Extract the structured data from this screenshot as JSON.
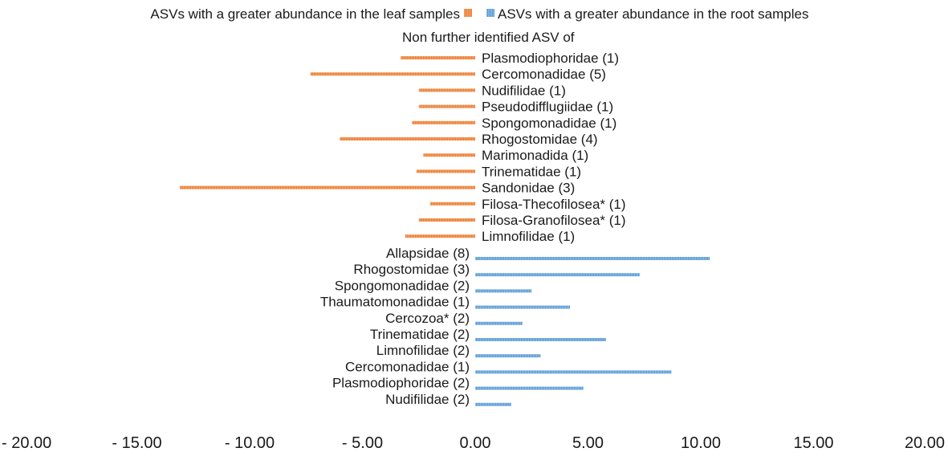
{
  "chart_data": {
    "type": "bar",
    "orientation": "horizontal",
    "subtitle": "Non further identified ASV of",
    "legend": [
      {
        "name": "ASVs with a greater abundance in the leaf samples",
        "color": "#ed7d31"
      },
      {
        "name": "ASVs with a greater abundance in the root samples",
        "color": "#5b9bd5"
      }
    ],
    "xlim": [
      -20,
      20
    ],
    "xticks": [
      "- 20.00",
      "- 15.00",
      "- 10.00",
      "- 5.00",
      "0.00",
      "5.00",
      "10.00",
      "15.00",
      "20.00"
    ],
    "series": [
      {
        "name": "ASVs with a greater abundance in the leaf samples",
        "color": "#ed7d31",
        "categories": [
          "Plasmodiophoridae (1)",
          "Cercomonadidae (5)",
          "Nudifilidae (1)",
          "Pseudodifflugiidae (1)",
          "Spongomonadidae (1)",
          "Rhogostomidae (4)",
          "Marimonadida (1)",
          "Trinematidae (1)",
          "Sandonidae (3)",
          "Filosa-Thecofilosea* (1)",
          "Filosa-Granofilosea* (1)",
          "Limnofilidae (1)"
        ],
        "values": [
          -3.3,
          -7.3,
          -2.5,
          -2.5,
          -2.8,
          -6.0,
          -2.3,
          -2.6,
          -13.1,
          -2.0,
          -2.5,
          -3.1
        ]
      },
      {
        "name": "ASVs with a greater abundance in the root samples",
        "color": "#5b9bd5",
        "categories": [
          "Allapsidae (8)",
          "Rhogostomidae (3)",
          "Spongomonadidae (2)",
          "Thaumatomonadidae (1)",
          "Cercozoa* (2)",
          "Trinematidae (2)",
          "Limnofilidae (2)",
          "Cercomonadidae (1)",
          "Plasmodiophoridae (2)",
          "Nudifilidae (2)"
        ],
        "values": [
          10.4,
          7.3,
          2.5,
          4.2,
          2.1,
          5.8,
          2.9,
          8.7,
          4.8,
          1.6
        ]
      }
    ]
  }
}
